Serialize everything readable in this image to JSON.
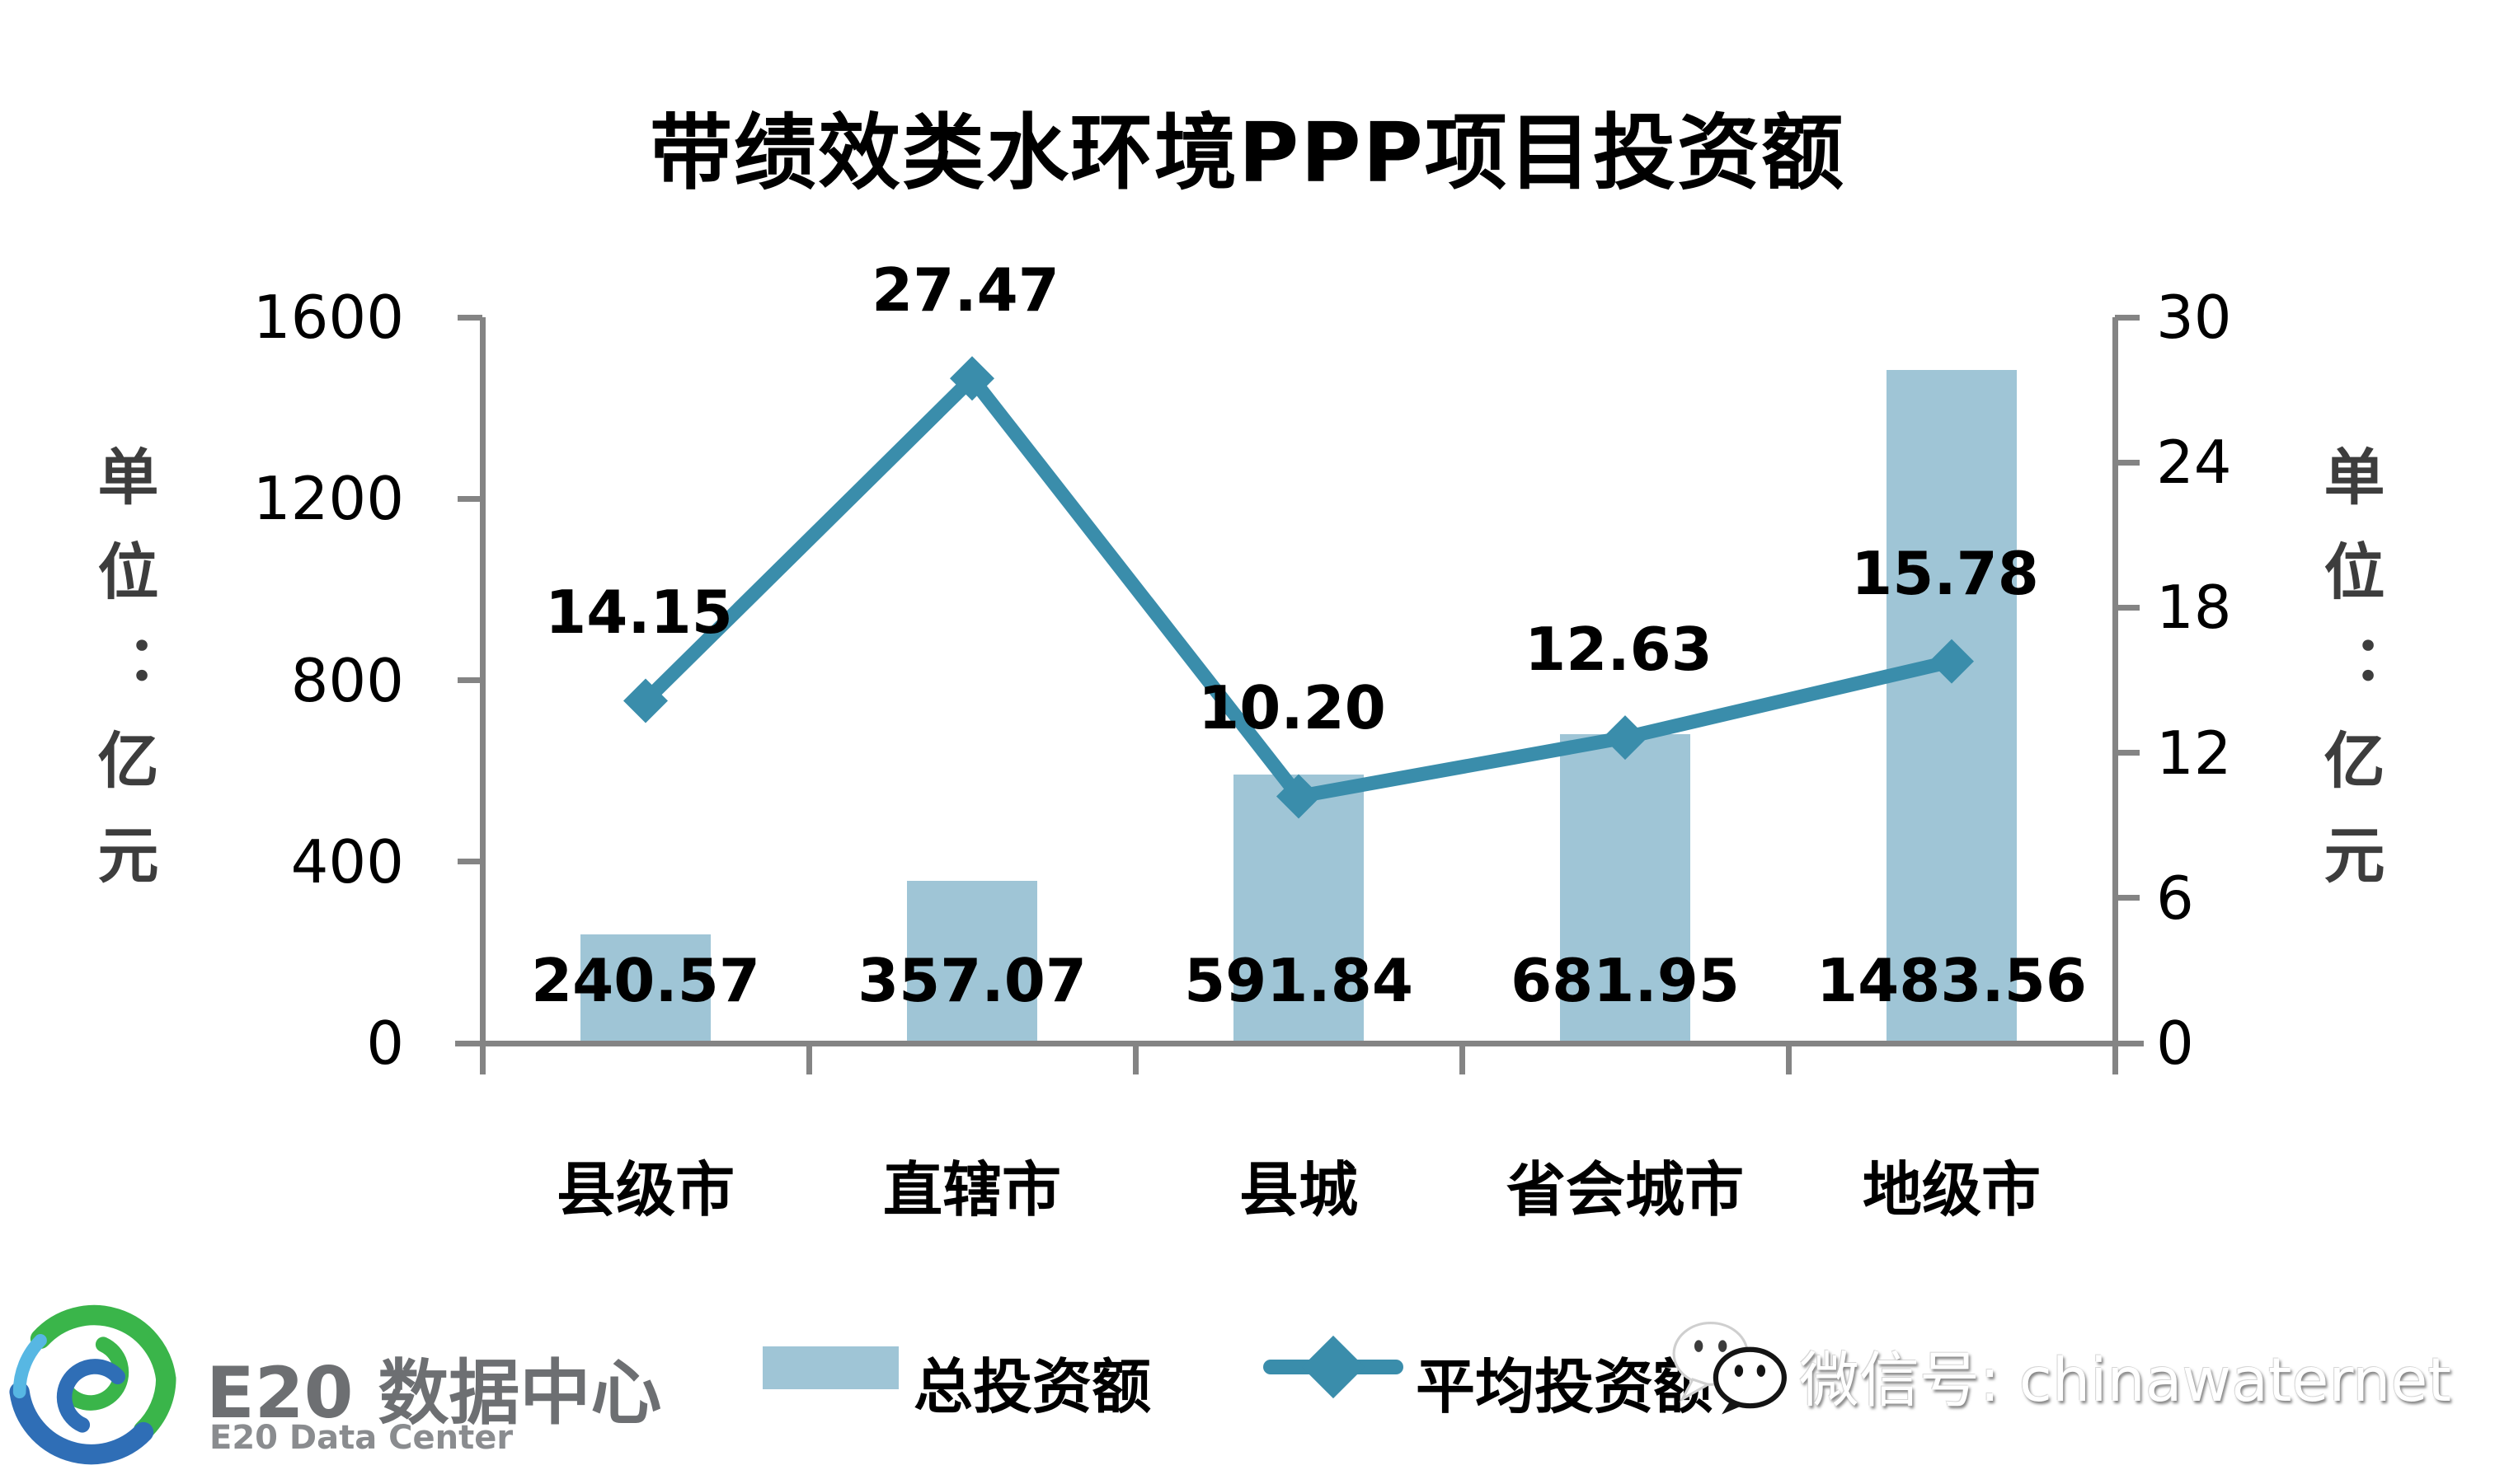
{
  "title": "带绩效类水环境PPP项目投资额",
  "chart_data": {
    "type": "bar+line combo",
    "categories": [
      "县级市",
      "直辖市",
      "县城",
      "省会城市",
      "地级市"
    ],
    "series": [
      {
        "name": "总投资额",
        "type": "bar",
        "axis": "left",
        "values": [
          240.57,
          357.07,
          591.84,
          681.95,
          1483.56
        ],
        "labels": [
          "240.57",
          "357.07",
          "591.84",
          "681.95",
          "1483.56"
        ],
        "color": "#9fc5d6"
      },
      {
        "name": "平均投资额",
        "type": "line",
        "axis": "right",
        "marker": "diamond",
        "values": [
          14.15,
          27.47,
          10.2,
          12.63,
          15.78
        ],
        "labels": [
          "14.15",
          "27.47",
          "10.20",
          "12.63",
          "15.78"
        ],
        "color": "#3a8dab"
      }
    ],
    "left_axis": {
      "label": "单位：亿元",
      "min": 0,
      "max": 1600,
      "step": 400
    },
    "right_axis": {
      "label": "单位：亿元",
      "min": 0,
      "max": 30,
      "step": 6
    },
    "grid": false,
    "legend_position": "bottom",
    "axis_color": "#848484"
  },
  "footer": {
    "logo_title": "E20 数据中心",
    "logo_subtitle": "E20 Data Center",
    "watermark": "微信号: chinawaternet"
  }
}
